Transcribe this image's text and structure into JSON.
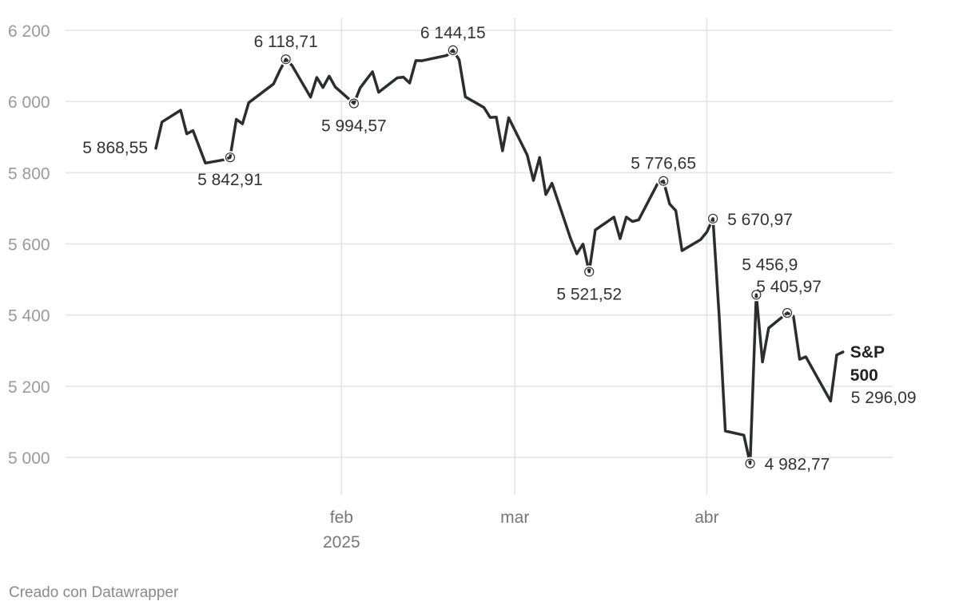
{
  "chart_data": {
    "type": "line",
    "y_ticks": [
      5000,
      5200,
      5400,
      5600,
      5800,
      6000,
      6200
    ],
    "y_tick_labels": [
      "5 000",
      "5 200",
      "5 400",
      "5 600",
      "5 800",
      "6 000",
      "6 200"
    ],
    "ylim": [
      4900,
      6200
    ],
    "xlim": [
      "2025-01-02",
      "2025-04-30"
    ],
    "x_ticks": [
      {
        "date": "2025-02-01",
        "label": "feb",
        "sublabel": "2025"
      },
      {
        "date": "2025-03-01",
        "label": "mar",
        "sublabel": ""
      },
      {
        "date": "2025-04-01",
        "label": "abr",
        "sublabel": ""
      }
    ],
    "grid": true,
    "series": [
      {
        "name": "S&P 500",
        "color": "#2b2d2f",
        "last_value_label": "5 296,09",
        "points": [
          [
            "2025-01-02",
            5868.55
          ],
          [
            "2025-01-03",
            5942.47
          ],
          [
            "2025-01-06",
            5975.38
          ],
          [
            "2025-01-07",
            5909.03
          ],
          [
            "2025-01-08",
            5918.25
          ],
          [
            "2025-01-10",
            5827.04
          ],
          [
            "2025-01-13",
            5836.22
          ],
          [
            "2025-01-14",
            5842.91
          ],
          [
            "2025-01-15",
            5949.91
          ],
          [
            "2025-01-16",
            5937.34
          ],
          [
            "2025-01-17",
            5996.66
          ],
          [
            "2025-01-21",
            6049.24
          ],
          [
            "2025-01-22",
            6086.37
          ],
          [
            "2025-01-23",
            6118.71
          ],
          [
            "2025-01-24",
            6101.24
          ],
          [
            "2025-01-27",
            6012.28
          ],
          [
            "2025-01-28",
            6067.7
          ],
          [
            "2025-01-29",
            6039.31
          ],
          [
            "2025-01-30",
            6071.17
          ],
          [
            "2025-01-31",
            6040.53
          ],
          [
            "2025-02-03",
            5994.57
          ],
          [
            "2025-02-04",
            6037.88
          ],
          [
            "2025-02-05",
            6061.48
          ],
          [
            "2025-02-06",
            6083.57
          ],
          [
            "2025-02-07",
            6025.99
          ],
          [
            "2025-02-10",
            6066.44
          ],
          [
            "2025-02-11",
            6068.5
          ],
          [
            "2025-02-12",
            6051.97
          ],
          [
            "2025-02-13",
            6115.07
          ],
          [
            "2025-02-14",
            6114.63
          ],
          [
            "2025-02-18",
            6129.58
          ],
          [
            "2025-02-19",
            6144.15
          ],
          [
            "2025-02-20",
            6117.52
          ],
          [
            "2025-02-21",
            6013.13
          ],
          [
            "2025-02-24",
            5983.25
          ],
          [
            "2025-02-25",
            5955.25
          ],
          [
            "2025-02-26",
            5956.06
          ],
          [
            "2025-02-27",
            5861.57
          ],
          [
            "2025-02-28",
            5954.5
          ],
          [
            "2025-03-03",
            5849.72
          ],
          [
            "2025-03-04",
            5778.15
          ],
          [
            "2025-03-05",
            5842.63
          ],
          [
            "2025-03-06",
            5738.52
          ],
          [
            "2025-03-07",
            5770.2
          ],
          [
            "2025-03-10",
            5614.56
          ],
          [
            "2025-03-11",
            5572.07
          ],
          [
            "2025-03-12",
            5599.3
          ],
          [
            "2025-03-13",
            5521.52
          ],
          [
            "2025-03-14",
            5638.94
          ],
          [
            "2025-03-17",
            5675.12
          ],
          [
            "2025-03-18",
            5614.66
          ],
          [
            "2025-03-19",
            5675.29
          ],
          [
            "2025-03-20",
            5662.89
          ],
          [
            "2025-03-21",
            5667.56
          ],
          [
            "2025-03-24",
            5767.57
          ],
          [
            "2025-03-25",
            5776.65
          ],
          [
            "2025-03-26",
            5712.2
          ],
          [
            "2025-03-27",
            5693.31
          ],
          [
            "2025-03-28",
            5580.94
          ],
          [
            "2025-03-31",
            5611.85
          ],
          [
            "2025-04-01",
            5633.07
          ],
          [
            "2025-04-02",
            5670.97
          ],
          [
            "2025-04-03",
            5396.52
          ],
          [
            "2025-04-04",
            5074.08
          ],
          [
            "2025-04-07",
            5062.25
          ],
          [
            "2025-04-08",
            4982.77
          ],
          [
            "2025-04-09",
            5456.9
          ],
          [
            "2025-04-10",
            5268.05
          ],
          [
            "2025-04-11",
            5363.36
          ],
          [
            "2025-04-14",
            5405.97
          ],
          [
            "2025-04-15",
            5396.63
          ],
          [
            "2025-04-16",
            5275.7
          ],
          [
            "2025-04-17",
            5282.7
          ],
          [
            "2025-04-21",
            5158.2
          ],
          [
            "2025-04-22",
            5287.76
          ],
          [
            "2025-04-23",
            5296.09
          ]
        ]
      }
    ],
    "annotations": [
      {
        "date": "2025-01-02",
        "value": 5868.55,
        "label": "5 868,55",
        "place": "left",
        "marker": false
      },
      {
        "date": "2025-01-14",
        "value": 5842.91,
        "label": "5 842,91",
        "place": "below",
        "marker": true
      },
      {
        "date": "2025-01-23",
        "value": 6118.71,
        "label": "6 118,71",
        "place": "above",
        "marker": true
      },
      {
        "date": "2025-02-03",
        "value": 5994.57,
        "label": "5 994,57",
        "place": "below",
        "marker": true
      },
      {
        "date": "2025-02-19",
        "value": 6144.15,
        "label": "6 144,15",
        "place": "above",
        "marker": true
      },
      {
        "date": "2025-03-13",
        "value": 5521.52,
        "label": "5 521,52",
        "place": "below",
        "marker": true
      },
      {
        "date": "2025-03-25",
        "value": 5776.65,
        "label": "5 776,65",
        "place": "above",
        "marker": true
      },
      {
        "date": "2025-04-02",
        "value": 5670.97,
        "label": "5 670,97",
        "place": "right",
        "marker": true
      },
      {
        "date": "2025-04-08",
        "value": 4982.77,
        "label": "4 982,77",
        "place": "right",
        "marker": true
      },
      {
        "date": "2025-04-09",
        "value": 5456.9,
        "label": "5 456,9",
        "place": "above",
        "marker": true
      },
      {
        "date": "2025-04-14",
        "value": 5405.97,
        "label": "5 405,97",
        "place": "above",
        "marker": true
      }
    ]
  },
  "footer": {
    "credit": "Creado con Datawrapper"
  }
}
